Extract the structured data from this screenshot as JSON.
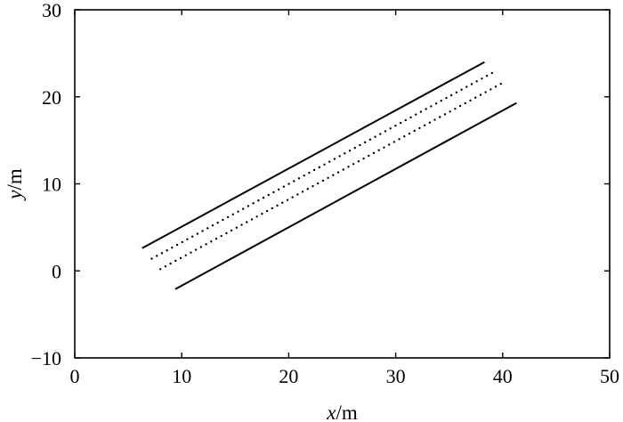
{
  "chart_data": {
    "type": "line",
    "title": "",
    "xlabel": {
      "var": "x",
      "unit": "/m"
    },
    "ylabel": {
      "var": "y",
      "unit": "/m"
    },
    "xlim": [
      0,
      50
    ],
    "ylim": [
      -10,
      30
    ],
    "xticks": [
      0,
      10,
      20,
      30,
      40,
      50
    ],
    "yticks": [
      -10,
      0,
      10,
      20,
      30
    ],
    "xtick_labels": [
      "0",
      "10",
      "20",
      "30",
      "40",
      "50"
    ],
    "ytick_labels": [
      "−10",
      "0",
      "10",
      "20",
      "30"
    ],
    "grid": false,
    "legend": "none",
    "series": [
      {
        "style": "solid",
        "color": "#000000",
        "x": [
          6.3,
          38.3
        ],
        "y": [
          2.6,
          24.0
        ]
      },
      {
        "style": "dotted",
        "color": "#000000",
        "x": [
          7.2,
          39.1
        ],
        "y": [
          1.4,
          22.8
        ]
      },
      {
        "style": "dotted",
        "color": "#000000",
        "x": [
          8.0,
          40.0
        ],
        "y": [
          0.2,
          21.6
        ]
      },
      {
        "style": "solid",
        "color": "#000000",
        "x": [
          9.4,
          41.3
        ],
        "y": [
          -2.1,
          19.3
        ]
      }
    ]
  }
}
